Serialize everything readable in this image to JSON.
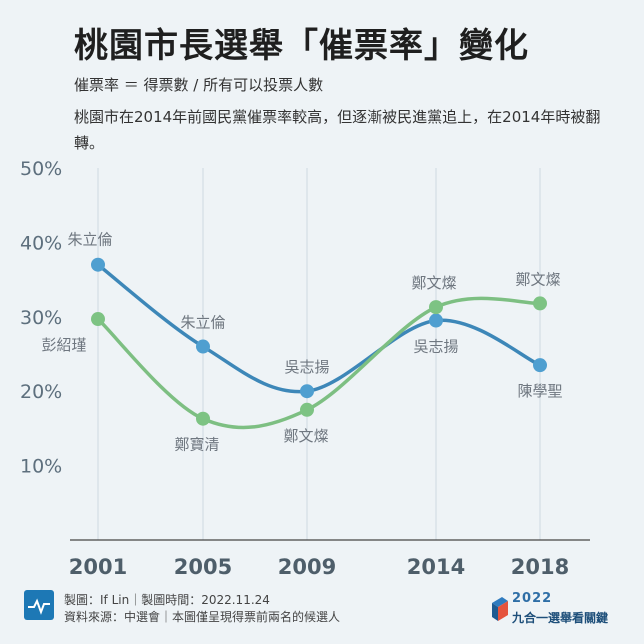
{
  "header": {
    "title": "桃園市長選舉「催票率」變化",
    "formula": "催票率 ＝ 得票數 / 所有可以投票人數",
    "description": "桃園市在2014年前國民黨催票率較高，但逐漸被民進黨追上，在2014年時被翻轉。"
  },
  "chart_data": {
    "type": "line",
    "x": [
      "2001",
      "2005",
      "2009",
      "2014",
      "2018"
    ],
    "ylim": [
      0,
      50
    ],
    "yticks": [
      10,
      20,
      30,
      40,
      50
    ],
    "ytick_labels": [
      "10%",
      "20%",
      "30%",
      "40%",
      "50%"
    ],
    "grid": "vertical",
    "series": [
      {
        "color": "#4f9fd0",
        "line_color": "#3d87b8",
        "values": [
          37.0,
          26.0,
          20.0,
          29.5,
          23.5
        ],
        "labels": [
          "朱立倫",
          "朱立倫",
          "吳志揚",
          "吳志揚",
          "陳學聖"
        ],
        "label_pos": [
          "above",
          "above",
          "above",
          "below",
          "below"
        ]
      },
      {
        "color": "#7dc383",
        "line_color": "#7dbf82",
        "values": [
          29.7,
          16.3,
          17.5,
          31.3,
          31.8
        ],
        "labels": [
          "彭紹瑾",
          "鄭寶清",
          "鄭文燦",
          "鄭文燦",
          "鄭文燦"
        ],
        "label_pos": [
          "below",
          "below",
          "below",
          "above",
          "above"
        ]
      }
    ]
  },
  "footer": {
    "line1": "製圖：If Lin｜製圖時間：2022.11.24",
    "line2": "資料來源：中選會｜本圖僅呈現得票前兩名的候選人",
    "brand_year": "2022",
    "brand_name": "九合一選舉看關鍵"
  }
}
